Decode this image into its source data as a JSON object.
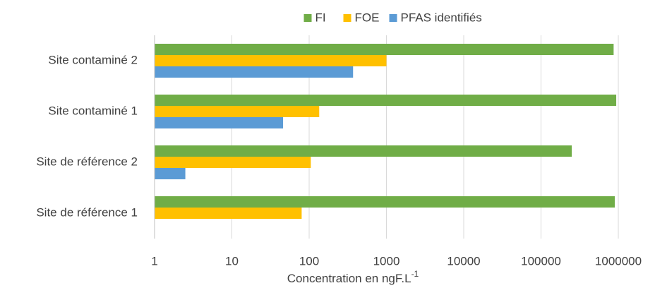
{
  "chart_data": {
    "type": "hbar",
    "xlabel": "Concentration en ngF.L",
    "xlabel_superscript": "-1",
    "categories": [
      "Site contaminé 2",
      "Site contaminé 1",
      "Site de référence 2",
      "Site de référence 1"
    ],
    "series": [
      {
        "name": "FI",
        "color": "#70ad47",
        "values": [
          870000,
          940000,
          250000,
          900000
        ]
      },
      {
        "name": "FOE",
        "color": "#ffc000",
        "values": [
          1000,
          135,
          105,
          80
        ]
      },
      {
        "name": "PFAS identifiés",
        "color": "#5b9bd5",
        "values": [
          370,
          46,
          2.5,
          null
        ]
      }
    ],
    "xscale": "log",
    "xlim": [
      1,
      1000000
    ],
    "xticks": [
      1,
      10,
      100,
      1000,
      10000,
      100000,
      1000000
    ],
    "grid": true,
    "legend": "top"
  }
}
